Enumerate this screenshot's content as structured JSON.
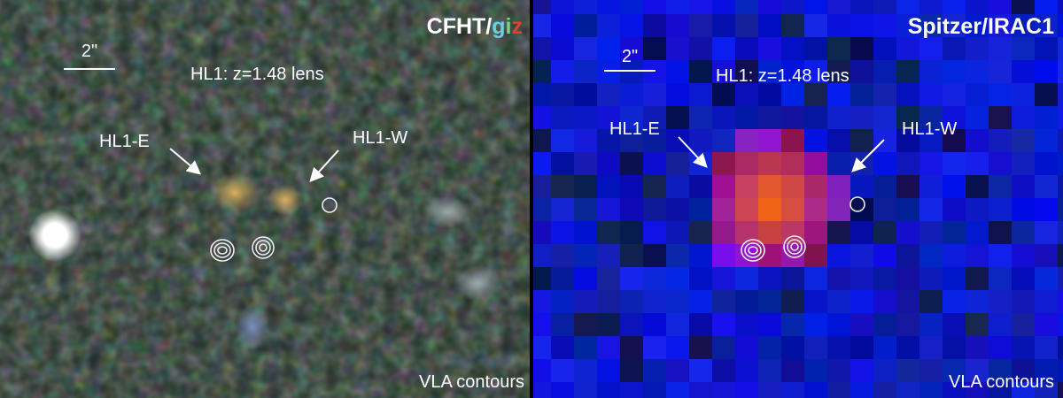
{
  "panels": [
    {
      "title_parts": [
        "CFHT/",
        "g",
        "i",
        "z"
      ],
      "scale_label": "2\"",
      "lens_label": "HL1: z=1.48 lens",
      "east_label": "HL1-E",
      "west_label": "HL1-W",
      "footer": "VLA contours"
    },
    {
      "title_parts": [
        "Spitzer/IRAC1"
      ],
      "scale_label": "2\"",
      "lens_label": "HL1: z=1.48 lens",
      "east_label": "HL1-E",
      "west_label": "HL1-W",
      "footer": "VLA contours"
    }
  ]
}
